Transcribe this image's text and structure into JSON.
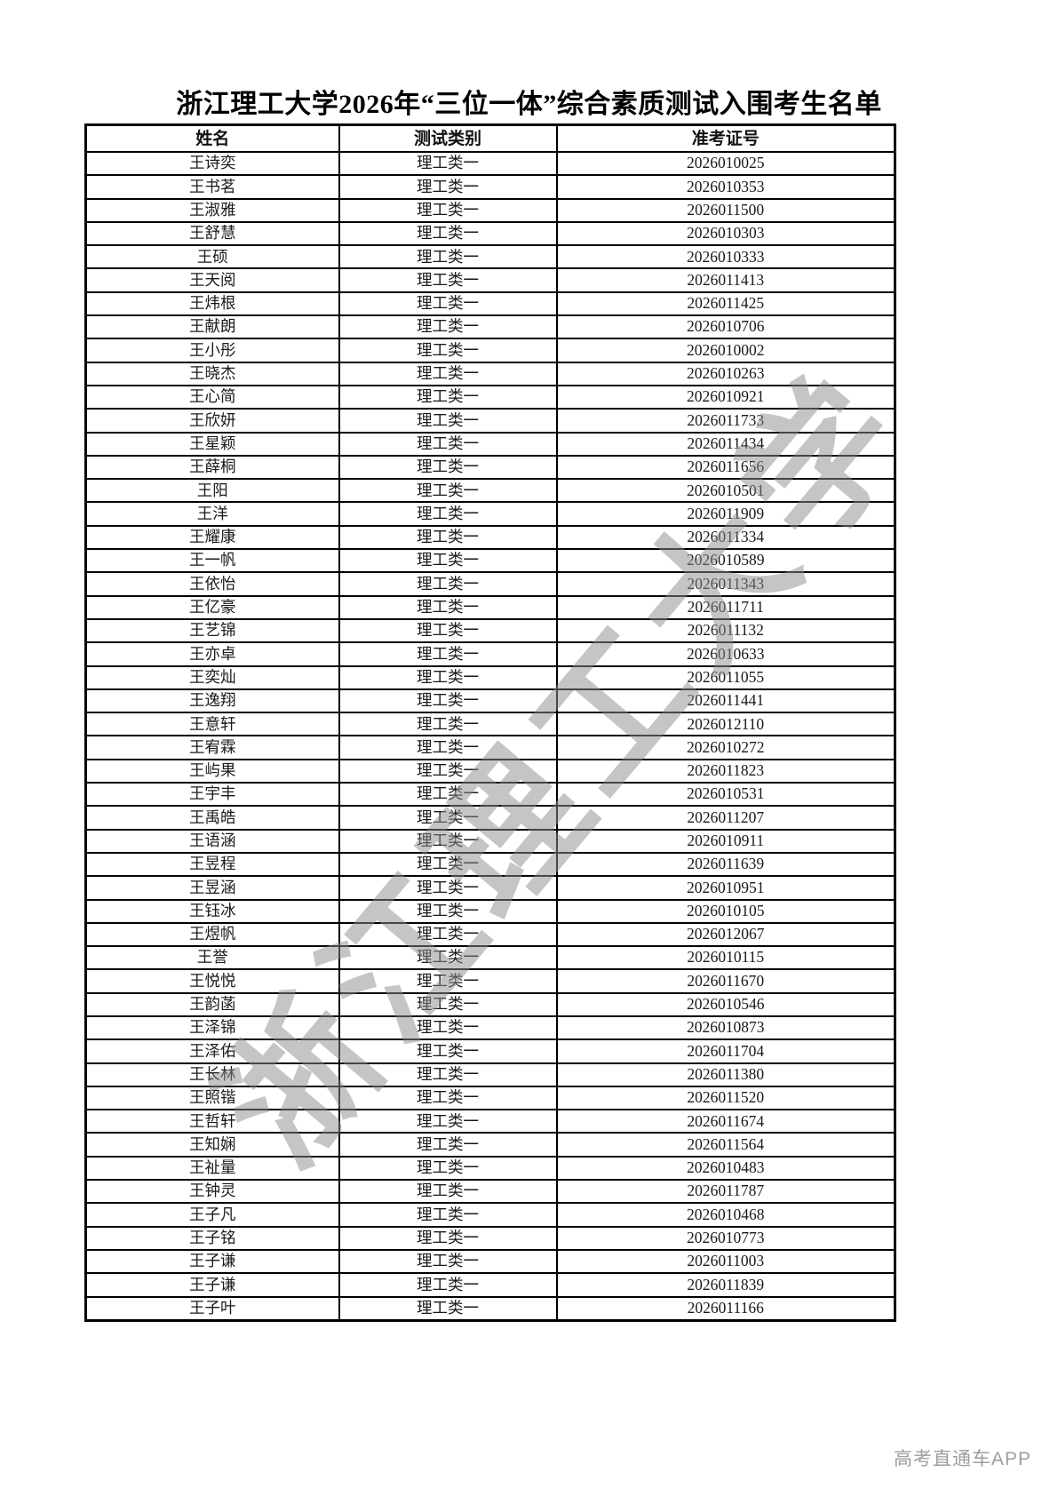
{
  "page": {
    "title": "浙江理工大学2026年“三位一体”综合素质测试入围考生名单",
    "watermark": "浙江理工大学",
    "footer_brand": "高考直通车APP"
  },
  "table": {
    "headers": [
      "姓名",
      "测试类别",
      "准考证号"
    ],
    "rows": [
      [
        "王诗奕",
        "理工类一",
        "2026010025"
      ],
      [
        "王书茗",
        "理工类一",
        "2026010353"
      ],
      [
        "王淑雅",
        "理工类一",
        "2026011500"
      ],
      [
        "王舒慧",
        "理工类一",
        "2026010303"
      ],
      [
        "王硕",
        "理工类一",
        "2026010333"
      ],
      [
        "王天阅",
        "理工类一",
        "2026011413"
      ],
      [
        "王炜根",
        "理工类一",
        "2026011425"
      ],
      [
        "王献朗",
        "理工类一",
        "2026010706"
      ],
      [
        "王小彤",
        "理工类一",
        "2026010002"
      ],
      [
        "王晓杰",
        "理工类一",
        "2026010263"
      ],
      [
        "王心简",
        "理工类一",
        "2026010921"
      ],
      [
        "王欣妍",
        "理工类一",
        "2026011733"
      ],
      [
        "王星颖",
        "理工类一",
        "2026011434"
      ],
      [
        "王薛桐",
        "理工类一",
        "2026011656"
      ],
      [
        "王阳",
        "理工类一",
        "2026010501"
      ],
      [
        "王洋",
        "理工类一",
        "2026011909"
      ],
      [
        "王耀康",
        "理工类一",
        "2026011334"
      ],
      [
        "王一帆",
        "理工类一",
        "2026010589"
      ],
      [
        "王依怡",
        "理工类一",
        "2026011343"
      ],
      [
        "王亿豪",
        "理工类一",
        "2026011711"
      ],
      [
        "王艺锦",
        "理工类一",
        "2026011132"
      ],
      [
        "王亦卓",
        "理工类一",
        "2026010633"
      ],
      [
        "王奕灿",
        "理工类一",
        "2026011055"
      ],
      [
        "王逸翔",
        "理工类一",
        "2026011441"
      ],
      [
        "王意轩",
        "理工类一",
        "2026012110"
      ],
      [
        "王宥霖",
        "理工类一",
        "2026010272"
      ],
      [
        "王屿果",
        "理工类一",
        "2026011823"
      ],
      [
        "王宇丰",
        "理工类一",
        "2026010531"
      ],
      [
        "王禹皓",
        "理工类一",
        "2026011207"
      ],
      [
        "王语涵",
        "理工类一",
        "2026010911"
      ],
      [
        "王昱程",
        "理工类一",
        "2026011639"
      ],
      [
        "王昱涵",
        "理工类一",
        "2026010951"
      ],
      [
        "王钰冰",
        "理工类一",
        "2026010105"
      ],
      [
        "王煜帆",
        "理工类一",
        "2026012067"
      ],
      [
        "王誉",
        "理工类一",
        "2026010115"
      ],
      [
        "王悦悦",
        "理工类一",
        "2026011670"
      ],
      [
        "王韵菡",
        "理工类一",
        "2026010546"
      ],
      [
        "王泽锦",
        "理工类一",
        "2026010873"
      ],
      [
        "王泽佑",
        "理工类一",
        "2026011704"
      ],
      [
        "王长林",
        "理工类一",
        "2026011380"
      ],
      [
        "王照锴",
        "理工类一",
        "2026011520"
      ],
      [
        "王哲轩",
        "理工类一",
        "2026011674"
      ],
      [
        "王知娴",
        "理工类一",
        "2026011564"
      ],
      [
        "王祉量",
        "理工类一",
        "2026010483"
      ],
      [
        "王钟灵",
        "理工类一",
        "2026011787"
      ],
      [
        "王子凡",
        "理工类一",
        "2026010468"
      ],
      [
        "王子铭",
        "理工类一",
        "2026010773"
      ],
      [
        "王子谦",
        "理工类一",
        "2026011003"
      ],
      [
        "王子谦",
        "理工类一",
        "2026011839"
      ],
      [
        "王子叶",
        "理工类一",
        "2026011166"
      ]
    ]
  }
}
